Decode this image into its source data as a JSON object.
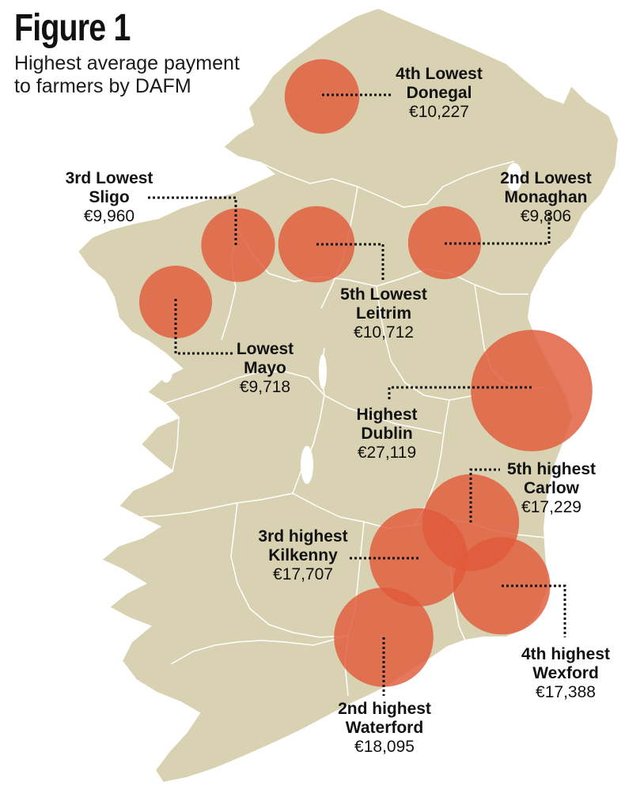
{
  "figure": {
    "title": "Figure 1",
    "subtitle": "Highest average payment to farmers by DAFM"
  },
  "colors": {
    "land": "#d9d2b2",
    "border": "#ffffff",
    "bubble": "#e05a3a",
    "bubble_overlap": "#d93a2a",
    "label_text": "#111111",
    "leader": "#111111"
  },
  "counties": [
    {
      "id": "mayo",
      "rank": "Lowest",
      "county": "Mayo",
      "value": "€9,718",
      "amount": 9718
    },
    {
      "id": "monaghan",
      "rank": "2nd Lowest",
      "county": "Monaghan",
      "value": "€9,806",
      "amount": 9806
    },
    {
      "id": "sligo",
      "rank": "3rd Lowest",
      "county": "Sligo",
      "value": "€9,960",
      "amount": 9960
    },
    {
      "id": "donegal",
      "rank": "4th Lowest",
      "county": "Donegal",
      "value": "€10,227",
      "amount": 10227
    },
    {
      "id": "leitrim",
      "rank": "5th Lowest",
      "county": "Leitrim",
      "value": "€10,712",
      "amount": 10712
    },
    {
      "id": "dublin",
      "rank": "Highest",
      "county": "Dublin",
      "value": "€27,119",
      "amount": 27119
    },
    {
      "id": "waterford",
      "rank": "2nd highest",
      "county": "Waterford",
      "value": "€18,095",
      "amount": 18095
    },
    {
      "id": "kilkenny",
      "rank": "3rd highest",
      "county": "Kilkenny",
      "value": "€17,707",
      "amount": 17707
    },
    {
      "id": "wexford",
      "rank": "4th highest",
      "county": "Wexford",
      "value": "€17,388",
      "amount": 17388
    },
    {
      "id": "carlow",
      "rank": "5th highest",
      "county": "Carlow",
      "value": "€17,229",
      "amount": 17229
    }
  ]
}
